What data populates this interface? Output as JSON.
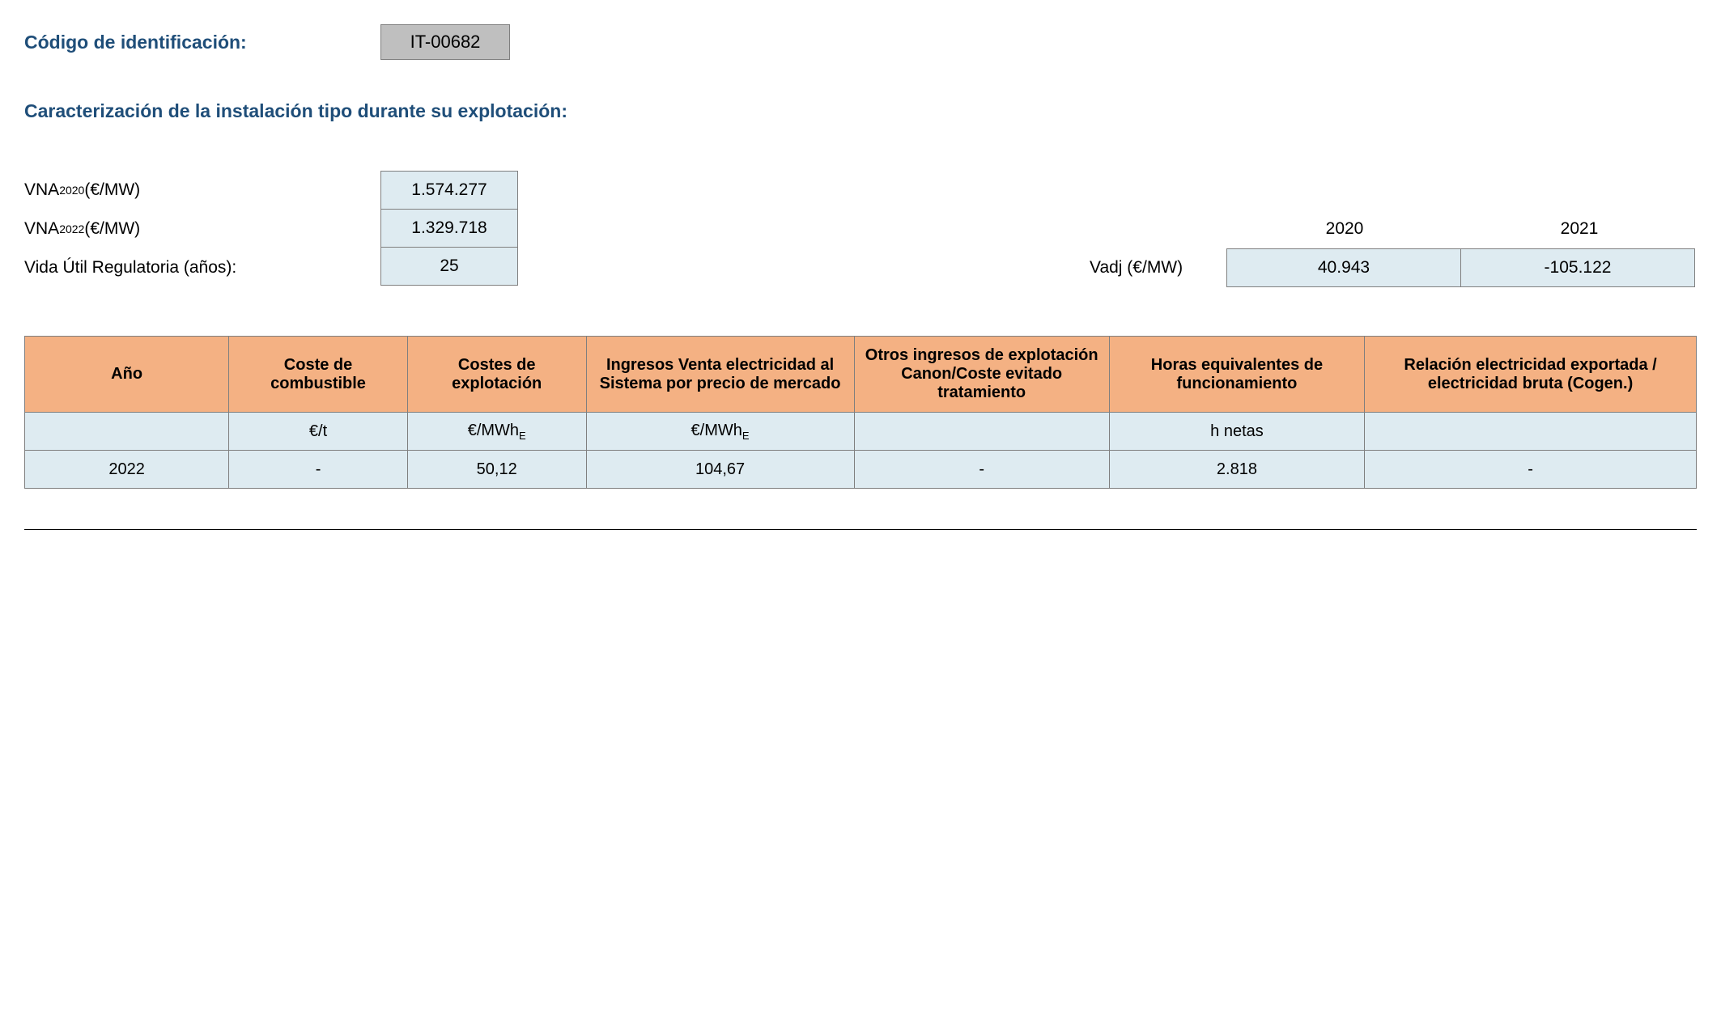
{
  "header": {
    "label": "Código de identificación:",
    "code": "IT-00682"
  },
  "section_title": "Caracterización de la instalación tipo durante su explotación:",
  "params": {
    "vna2020": {
      "label_prefix": "VNA",
      "label_sub": "2020",
      "label_suffix": " (€/MW)",
      "value": "1.574.277"
    },
    "vna2022": {
      "label_prefix": "VNA",
      "label_sub": "2022",
      "label_suffix": " (€/MW)",
      "value": "1.329.718"
    },
    "vida": {
      "label": "Vida Útil Regulatoria (años):",
      "value": "25"
    }
  },
  "vadj": {
    "label": "Vadj (€/MW)",
    "years": [
      "2020",
      "2021"
    ],
    "values": [
      "40.943",
      "-105.122"
    ]
  },
  "table": {
    "headers": {
      "ano": "Año",
      "combustible": "Coste de combustible",
      "explotacion": "Costes de explotación",
      "ingresos": "Ingresos Venta electricidad al Sistema por precio de mercado",
      "otros": "Otros ingresos de explotación Canon/Coste evitado tratamiento",
      "horas": "Horas equivalentes de funcionamiento",
      "relacion": "Relación electricidad exportada / electricidad bruta (Cogen.)"
    },
    "units": {
      "ano": "",
      "combustible": "€/t",
      "explotacion_prefix": "€/MWh",
      "explotacion_sub": "E",
      "ingresos_prefix": "€/MWh",
      "ingresos_sub": "E",
      "otros": "",
      "horas": "h netas",
      "relacion": ""
    },
    "row": {
      "ano": "2022",
      "combustible": "-",
      "explotacion": "50,12",
      "ingresos": "104,67",
      "otros": "-",
      "horas": "2.818",
      "relacion": "-"
    }
  }
}
